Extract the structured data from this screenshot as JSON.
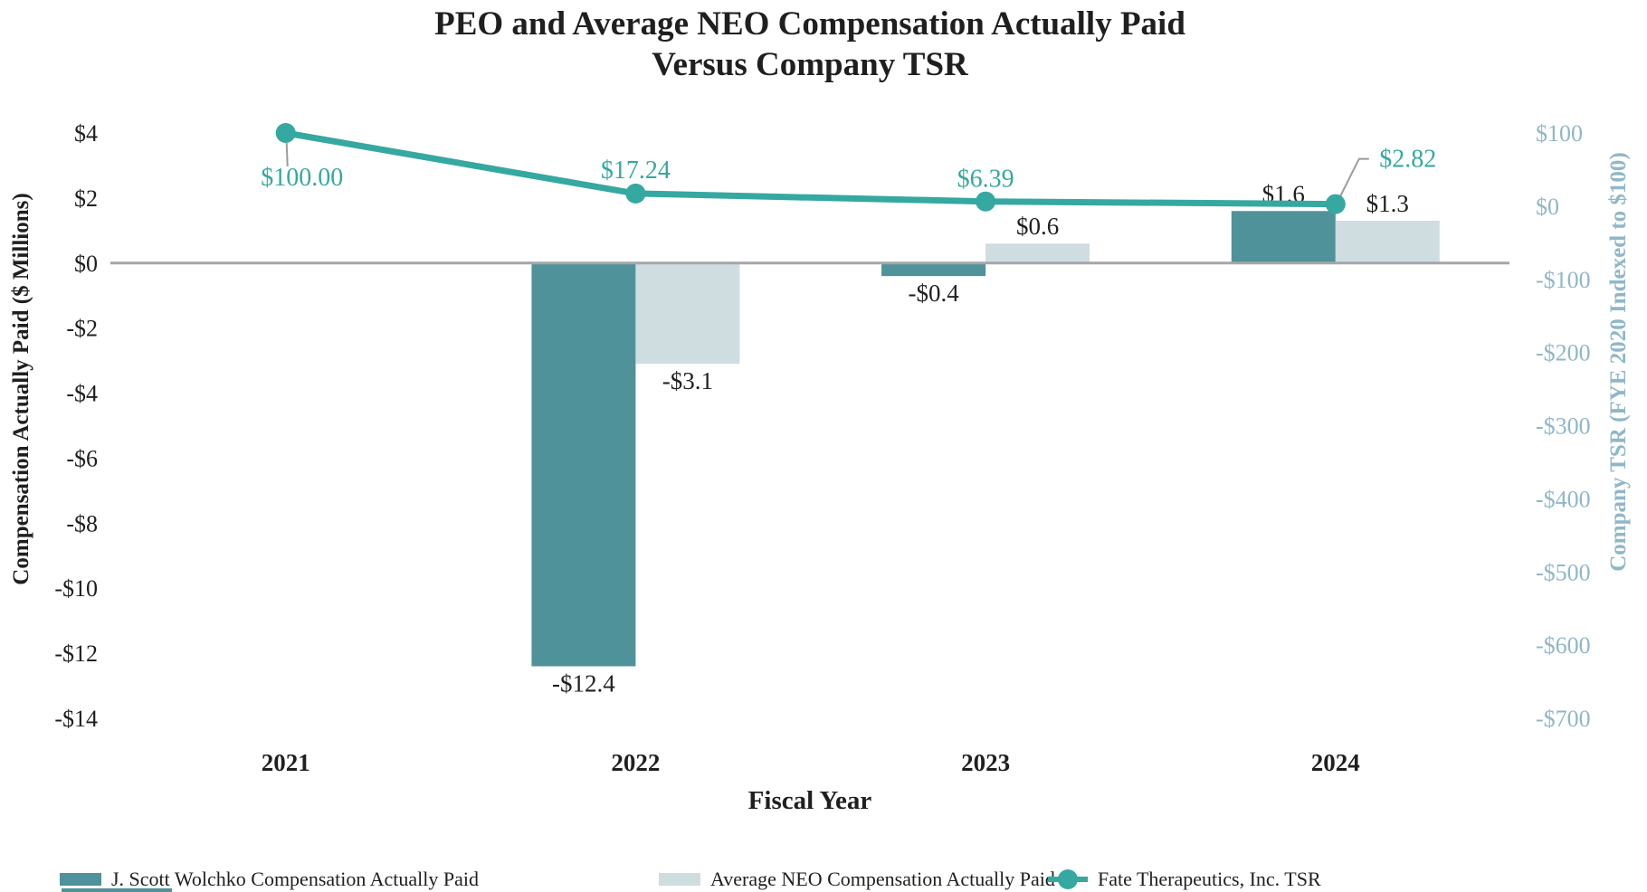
{
  "title": {
    "line1": "PEO and Average NEO Compensation Actually Paid",
    "line2": "Versus Company TSR"
  },
  "chart_data": {
    "type": "bar+line combo, dual y-axes",
    "categories": [
      "2021",
      "2022",
      "2023",
      "2024"
    ],
    "series": [
      {
        "name": "J. Scott Wolchko Compensation Actually Paid",
        "type": "bar",
        "axis": "left",
        "color": "#4f9299",
        "values": [
          null,
          -12.4,
          -0.4,
          1.6
        ],
        "labels": [
          "",
          "-$12.4",
          "-$0.4",
          "$1.6"
        ]
      },
      {
        "name": "Average NEO Compensation Actually Paid",
        "type": "bar",
        "axis": "left",
        "color": "#cfdde1",
        "values": [
          null,
          -3.1,
          0.6,
          1.3
        ],
        "labels": [
          "",
          "-$3.1",
          "$0.6",
          "$1.3"
        ]
      },
      {
        "name": "Fate Therapeutics, Inc. TSR",
        "type": "line",
        "axis": "right",
        "color": "#35a8a1",
        "values": [
          100.0,
          17.24,
          6.39,
          2.82
        ],
        "labels": [
          "$100.00",
          "$17.24",
          "$6.39",
          "$2.82"
        ]
      }
    ],
    "left_axis": {
      "title": "Compensation Actually Paid ($ Millions)",
      "ticks": [
        "$4",
        "$2",
        "$0",
        "-$2",
        "-$4",
        "-$6",
        "-$8",
        "-$10",
        "-$12",
        "-$14"
      ],
      "tick_values": [
        4,
        2,
        0,
        -2,
        -4,
        -6,
        -8,
        -10,
        -12,
        -14
      ],
      "range": [
        4,
        -14
      ]
    },
    "right_axis": {
      "title": "Company TSR (FYE 2020 Indexed to $100)",
      "ticks": [
        "$100",
        "$0",
        "-$100",
        "-$200",
        "-$300",
        "-$400",
        "-$500",
        "-$600",
        "-$700"
      ],
      "tick_values": [
        100,
        0,
        -100,
        -200,
        -300,
        -400,
        -500,
        -600,
        -700
      ],
      "range": [
        100,
        -700
      ],
      "color": "#8fb7c8"
    },
    "x_axis": {
      "title": "Fiscal Year"
    },
    "grid": "off",
    "legend_position": "bottom",
    "colors": {
      "zero_line": "#a6a6a6",
      "leader_line": "#9b9b9b",
      "tsr_label": "#35a8a1"
    }
  }
}
